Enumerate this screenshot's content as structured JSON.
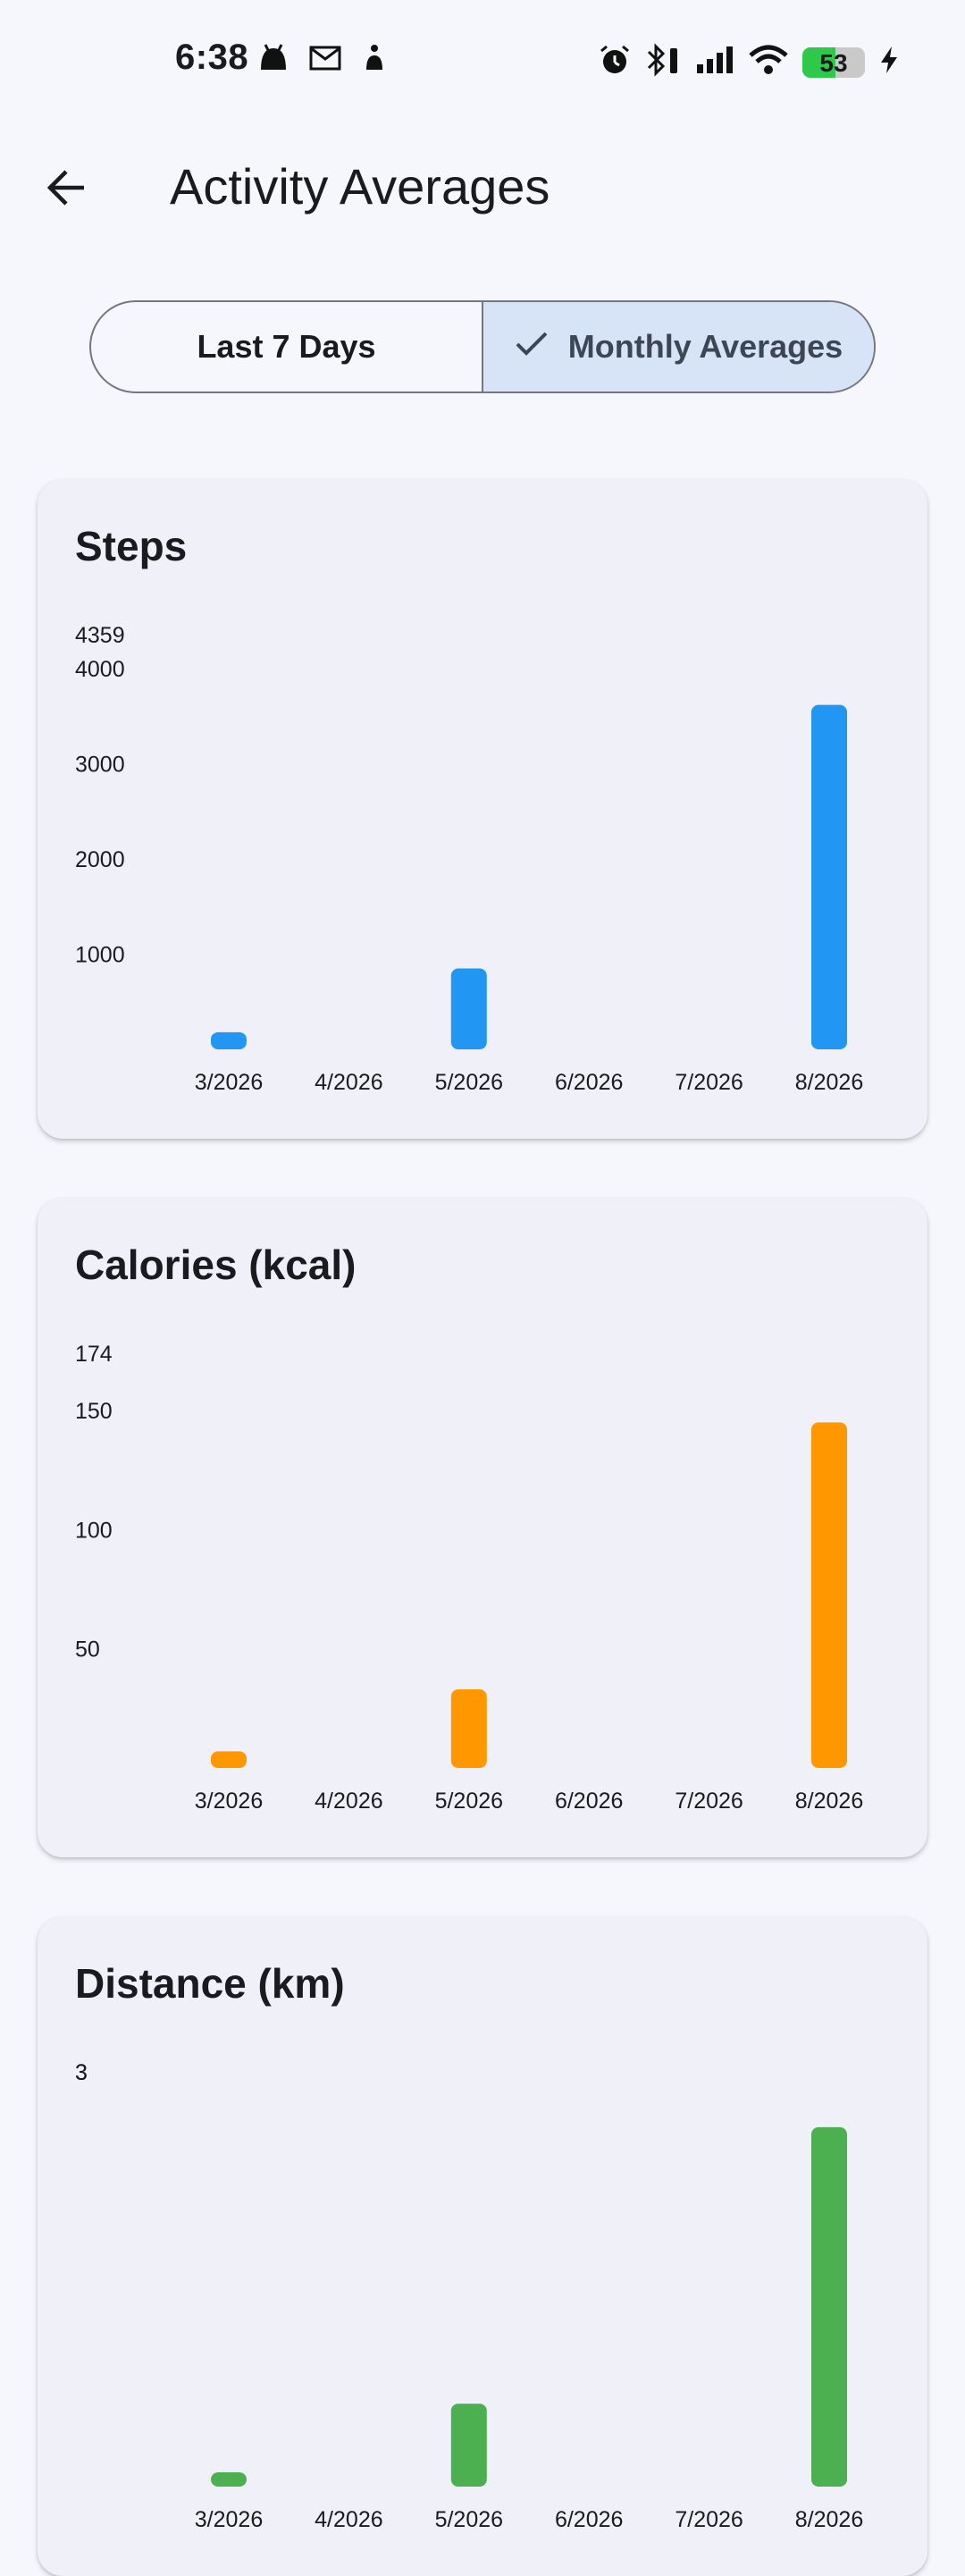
{
  "status_bar": {
    "time": "6:38",
    "battery_level": "53",
    "battery_fraction": 0.53,
    "left_icons": [
      "android-icon",
      "mail-icon",
      "accessibility-icon"
    ],
    "right_icons": [
      "alarm-icon",
      "bluetooth-icon",
      "cellular-signal-icon",
      "wifi-icon",
      "battery-icon",
      "charging-icon"
    ]
  },
  "app_bar": {
    "title": "Activity Averages",
    "back_icon": "arrow-back-icon"
  },
  "segments": {
    "last7": "Last 7 Days",
    "monthly": "Monthly Averages",
    "selected": "monthly",
    "check_icon": "check-icon"
  },
  "chart_data": [
    {
      "type": "bar",
      "title": "Steps",
      "color": "#2196f3",
      "categories": [
        "3/2026",
        "4/2026",
        "5/2026",
        "6/2026",
        "7/2026",
        "8/2026"
      ],
      "values": [
        180,
        0,
        850,
        0,
        0,
        3620
      ],
      "y_max": 4359,
      "y_ticks": [
        1000,
        2000,
        3000,
        4000
      ],
      "y_max_label": "4359",
      "grid": false
    },
    {
      "type": "bar",
      "title": "Calories (kcal)",
      "color": "#ff9800",
      "categories": [
        "3/2026",
        "4/2026",
        "5/2026",
        "6/2026",
        "7/2026",
        "8/2026"
      ],
      "values": [
        7,
        0,
        33,
        0,
        0,
        145
      ],
      "y_max": 174,
      "y_ticks": [
        50,
        100,
        150
      ],
      "y_max_label": "174",
      "grid": false
    },
    {
      "type": "bar",
      "title": "Distance (km)",
      "color": "#4caf50",
      "categories": [
        "3/2026",
        "4/2026",
        "5/2026",
        "6/2026",
        "7/2026",
        "8/2026"
      ],
      "values": [
        0.1,
        0,
        0.6,
        0,
        0,
        2.6
      ],
      "y_max": 3,
      "y_ticks": [
        3
      ],
      "y_max_label": "3",
      "grid": false
    }
  ]
}
